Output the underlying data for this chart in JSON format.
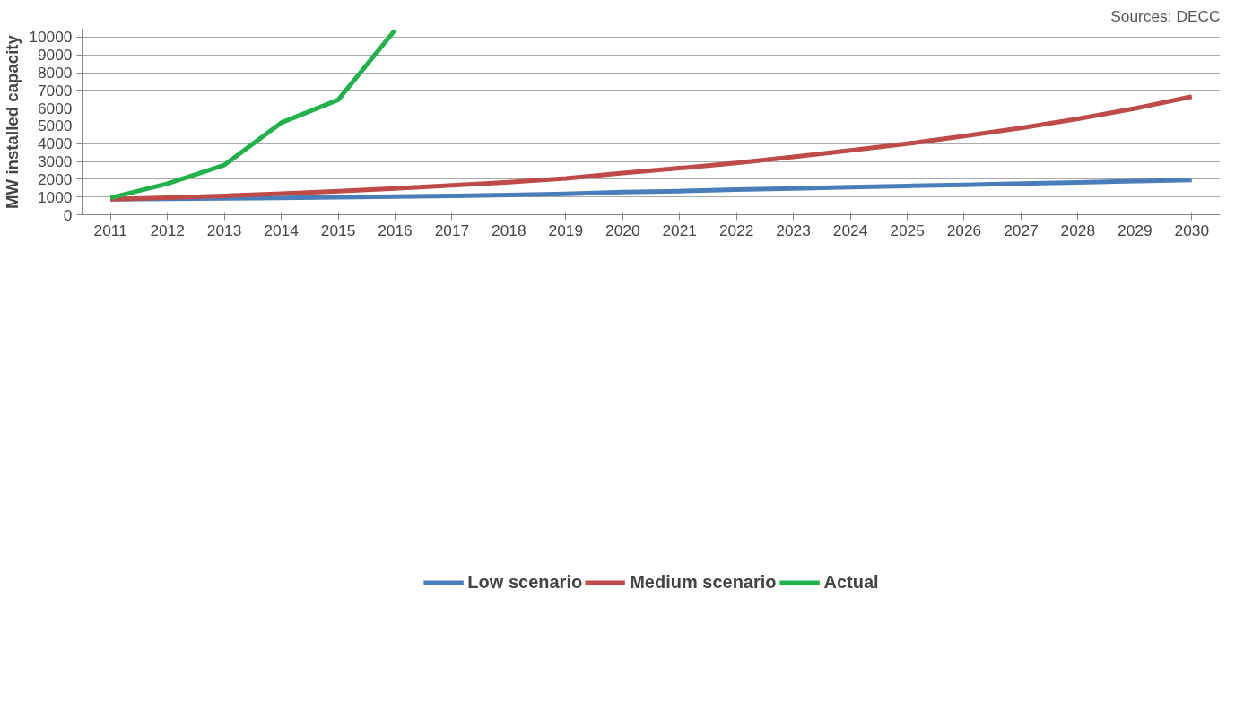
{
  "chart_data": {
    "type": "line",
    "ylabel": "MW installed capacity",
    "annotations": [
      "Sources: DECC"
    ],
    "categories": [
      "2011",
      "2012",
      "2013",
      "2014",
      "2015",
      "2016",
      "2017",
      "2018",
      "2019",
      "2020",
      "2021",
      "2022",
      "2023",
      "2024",
      "2025",
      "2026",
      "2027",
      "2028",
      "2029",
      "2030"
    ],
    "series": [
      {
        "name": "Low scenario",
        "color": "#4a7ebb",
        "values": [
          870,
          890,
          920,
          950,
          980,
          1020,
          1060,
          1110,
          1180,
          1280,
          1330,
          1410,
          1480,
          1550,
          1620,
          1680,
          1750,
          1820,
          1890,
          1960
        ]
      },
      {
        "name": "Medium scenario",
        "color": "#be4b48",
        "values": [
          870,
          960,
          1060,
          1190,
          1320,
          1480,
          1650,
          1830,
          2050,
          2350,
          2620,
          2920,
          3260,
          3620,
          4000,
          4430,
          4880,
          5400,
          5980,
          6650
        ]
      },
      {
        "name": "Actual",
        "color": "#22b24c",
        "values": [
          950,
          1750,
          2800,
          5180,
          6470,
          10400,
          null,
          null,
          null,
          null,
          null,
          null,
          null,
          null,
          null,
          null,
          null,
          null,
          null,
          null
        ]
      }
    ],
    "ylim": [
      0,
      10450
    ],
    "yticks": [
      0,
      1000,
      2000,
      3000,
      4000,
      5000,
      6000,
      7000,
      8000,
      9000,
      10000
    ],
    "grid": "y",
    "legend": "bottom",
    "marker": "none",
    "line_style": "solid"
  }
}
